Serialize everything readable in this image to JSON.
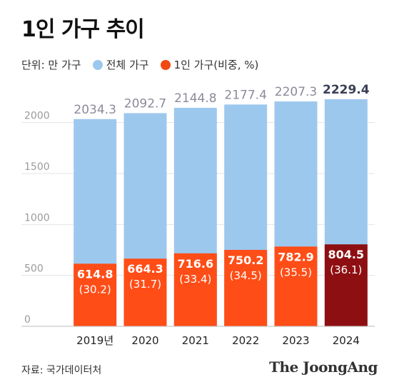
{
  "title": "1인 가구 추이",
  "legend": {
    "unit": "단위: 만 가구",
    "series_total": "전체 가구",
    "series_single": "1인 가구(비중, %)"
  },
  "source": "자료: 국가데이터처",
  "brand": "The JoongAng",
  "colors": {
    "total": "#9dc8ee",
    "single": "#ff4d17",
    "single_highlight": "#8e0f12",
    "legend_total": "#9dc8ee",
    "legend_single": "#f04a12"
  },
  "chart_data": {
    "type": "bar",
    "categories": [
      "2019년",
      "2020",
      "2021",
      "2022",
      "2023",
      "2024"
    ],
    "series": [
      {
        "name": "전체 가구",
        "values": [
          2034.3,
          2092.7,
          2144.8,
          2177.4,
          2207.3,
          2229.4
        ]
      },
      {
        "name": "1인 가구(비중, %)",
        "values": [
          614.8,
          664.3,
          716.6,
          750.2,
          782.9,
          804.5
        ],
        "share": [
          30.2,
          31.7,
          33.4,
          34.5,
          35.5,
          36.1
        ]
      }
    ],
    "total_labels": [
      "2034.3",
      "2092.7",
      "2144.8",
      "2177.4",
      "2207.3",
      "2229.4"
    ],
    "single_labels": [
      "614.8",
      "664.3",
      "716.6",
      "750.2",
      "782.9",
      "804.5"
    ],
    "share_labels": [
      "(30.2)",
      "(31.7)",
      "(33.4)",
      "(34.5)",
      "(35.5)",
      "(36.1)"
    ],
    "yticks": [
      0,
      500,
      1000,
      1500,
      2000
    ],
    "ylim": [
      0,
      2250
    ],
    "highlight_index": 5,
    "grid": true
  }
}
